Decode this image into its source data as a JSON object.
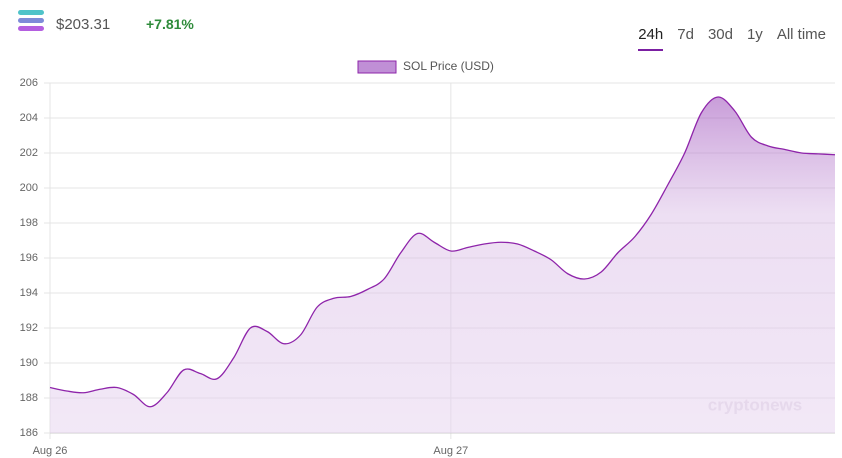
{
  "header": {
    "price": "$203.31",
    "change": "+7.81%",
    "tabs": [
      "24h",
      "7d",
      "30d",
      "1y",
      "All time"
    ],
    "active_tab": 0,
    "watermark": "cryptonews"
  },
  "chart_data": {
    "type": "area",
    "series": [
      {
        "name": "SOL Price (USD)",
        "color": "#8e24aa",
        "values": [
          188.6,
          188.4,
          188.3,
          188.5,
          188.6,
          188.2,
          187.5,
          188.3,
          189.6,
          189.4,
          189.1,
          190.3,
          192.0,
          191.8,
          191.1,
          191.6,
          193.2,
          193.7,
          193.8,
          194.2,
          194.8,
          196.3,
          197.4,
          196.9,
          196.4,
          196.6,
          196.8,
          196.9,
          196.8,
          196.4,
          195.9,
          195.1,
          194.8,
          195.2,
          196.3,
          197.2,
          198.5,
          200.2,
          202.0,
          204.3,
          205.2,
          204.4,
          202.9,
          202.4,
          202.2,
          202.0,
          201.95,
          201.9
        ]
      }
    ],
    "categories": [
      "Aug 26",
      null,
      null,
      null,
      null,
      null,
      null,
      null,
      null,
      null,
      null,
      null,
      null,
      null,
      null,
      null,
      null,
      null,
      null,
      null,
      null,
      null,
      null,
      null,
      "Aug 27",
      null,
      null,
      null,
      null,
      null,
      null,
      null,
      null,
      null,
      null,
      null,
      null,
      null,
      null,
      null,
      null,
      null,
      null,
      null,
      null,
      null,
      null,
      null
    ],
    "ylim": [
      186,
      206
    ],
    "yticks": [
      186,
      188,
      190,
      192,
      194,
      196,
      198,
      200,
      202,
      204,
      206
    ],
    "grid": true,
    "legend": "top"
  }
}
